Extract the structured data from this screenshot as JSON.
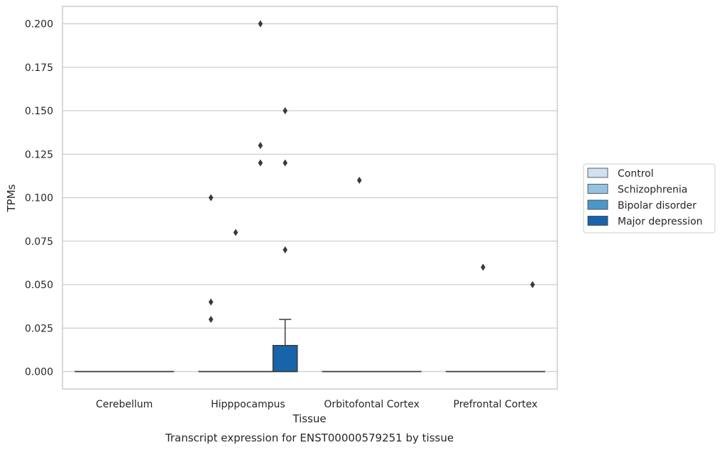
{
  "chart_data": {
    "type": "box",
    "title": "",
    "caption": "Transcript expression for ENST00000579251 by tissue",
    "xlabel": "Tissue",
    "ylabel": "TPMs",
    "ylim": [
      -0.01,
      0.21
    ],
    "yticks": [
      "0.000",
      "0.025",
      "0.050",
      "0.075",
      "0.100",
      "0.125",
      "0.150",
      "0.175",
      "0.200"
    ],
    "grid": "horizontal",
    "legend_position": "right",
    "categories": [
      "Cerebellum",
      "Hipppocampus",
      "Orbitofontal Cortex",
      "Prefrontal Cortex"
    ],
    "series": [
      {
        "name": "Control",
        "color": "#d0e1f2",
        "boxes": [
          {
            "category": "Cerebellum",
            "q1": 0,
            "median": 0,
            "q3": 0,
            "whisker_low": 0,
            "whisker_high": 0,
            "outliers": []
          },
          {
            "category": "Hipppocampus",
            "q1": 0,
            "median": 0,
            "q3": 0,
            "whisker_low": 0,
            "whisker_high": 0,
            "outliers": [
              0.1,
              0.04,
              0.03
            ]
          },
          {
            "category": "Orbitofontal Cortex",
            "q1": 0,
            "median": 0,
            "q3": 0,
            "whisker_low": 0,
            "whisker_high": 0,
            "outliers": []
          },
          {
            "category": "Prefrontal Cortex",
            "q1": 0,
            "median": 0,
            "q3": 0,
            "whisker_low": 0,
            "whisker_high": 0,
            "outliers": []
          }
        ]
      },
      {
        "name": "Schizophrenia",
        "color": "#94c4df",
        "boxes": [
          {
            "category": "Cerebellum",
            "q1": 0,
            "median": 0,
            "q3": 0,
            "whisker_low": 0,
            "whisker_high": 0,
            "outliers": []
          },
          {
            "category": "Hipppocampus",
            "q1": 0,
            "median": 0,
            "q3": 0,
            "whisker_low": 0,
            "whisker_high": 0,
            "outliers": [
              0.08
            ]
          },
          {
            "category": "Orbitofontal Cortex",
            "q1": 0,
            "median": 0,
            "q3": 0,
            "whisker_low": 0,
            "whisker_high": 0,
            "outliers": [
              0.11
            ]
          },
          {
            "category": "Prefrontal Cortex",
            "q1": 0,
            "median": 0,
            "q3": 0,
            "whisker_low": 0,
            "whisker_high": 0,
            "outliers": [
              0.06
            ]
          }
        ]
      },
      {
        "name": "Bipolar disorder",
        "color": "#4a98c9",
        "boxes": [
          {
            "category": "Cerebellum",
            "q1": 0,
            "median": 0,
            "q3": 0,
            "whisker_low": 0,
            "whisker_high": 0,
            "outliers": []
          },
          {
            "category": "Hipppocampus",
            "q1": 0,
            "median": 0,
            "q3": 0,
            "whisker_low": 0,
            "whisker_high": 0,
            "outliers": [
              0.2,
              0.13,
              0.12
            ]
          },
          {
            "category": "Orbitofontal Cortex",
            "q1": 0,
            "median": 0,
            "q3": 0,
            "whisker_low": 0,
            "whisker_high": 0,
            "outliers": []
          },
          {
            "category": "Prefrontal Cortex",
            "q1": 0,
            "median": 0,
            "q3": 0,
            "whisker_low": 0,
            "whisker_high": 0,
            "outliers": []
          }
        ]
      },
      {
        "name": "Major depression",
        "color": "#1764ab",
        "boxes": [
          {
            "category": "Cerebellum",
            "q1": 0,
            "median": 0,
            "q3": 0,
            "whisker_low": 0,
            "whisker_high": 0,
            "outliers": []
          },
          {
            "category": "Hipppocampus",
            "q1": 0,
            "median": 0,
            "q3": 0.015,
            "whisker_low": 0,
            "whisker_high": 0.03,
            "outliers": [
              0.15,
              0.12,
              0.07
            ]
          },
          {
            "category": "Orbitofontal Cortex",
            "q1": 0,
            "median": 0,
            "q3": 0,
            "whisker_low": 0,
            "whisker_high": 0,
            "outliers": []
          },
          {
            "category": "Prefrontal Cortex",
            "q1": 0,
            "median": 0,
            "q3": 0,
            "whisker_low": 0,
            "whisker_high": 0,
            "outliers": [
              0.05
            ]
          }
        ]
      }
    ]
  }
}
